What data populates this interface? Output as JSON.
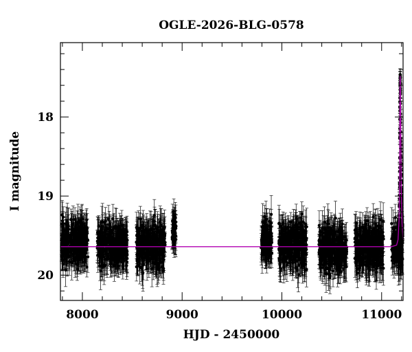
{
  "chart_data": {
    "type": "scatter",
    "title": "OGLE-2026-BLG-0578",
    "xlabel": "HJD - 2450000",
    "ylabel": "I magnitude",
    "xlim": [
      7780,
      11215
    ],
    "ylim": [
      20.32,
      17.06
    ],
    "y_inverted": true,
    "grid": false,
    "x_ticks": [
      8000,
      9000,
      10000,
      11000
    ],
    "y_ticks": [
      18,
      19,
      20
    ],
    "x_tick_labels": [
      "8000",
      "9000",
      "10000",
      "11000"
    ],
    "y_tick_labels": [
      "18",
      "19",
      "20"
    ],
    "x_minor_step": 200,
    "y_minor_step": 0.2,
    "colors": {
      "points": "#000000",
      "model": "#b000b0"
    },
    "baseline_mag": 19.64,
    "seasons": [
      {
        "start": 7790,
        "end": 8055,
        "mean": 19.6,
        "spread": 0.3
      },
      {
        "start": 8150,
        "end": 8450,
        "mean": 19.62,
        "spread": 0.28
      },
      {
        "start": 8540,
        "end": 8830,
        "mean": 19.62,
        "spread": 0.3
      },
      {
        "start": 8900,
        "end": 8940,
        "mean": 19.45,
        "spread": 0.18
      },
      {
        "start": 9790,
        "end": 9900,
        "mean": 19.55,
        "spread": 0.25
      },
      {
        "start": 9970,
        "end": 10250,
        "mean": 19.62,
        "spread": 0.3
      },
      {
        "start": 10370,
        "end": 10650,
        "mean": 19.66,
        "spread": 0.32
      },
      {
        "start": 10730,
        "end": 11020,
        "mean": 19.65,
        "spread": 0.32
      },
      {
        "start": 11100,
        "end": 11212,
        "mean": 19.6,
        "spread": 0.28
      }
    ],
    "event": {
      "t0": 11185,
      "peak_mag": 17.48,
      "rise_start": 11150,
      "decline_end": 11212
    },
    "model_curve": {
      "x": [
        7780,
        11100,
        11150,
        11165,
        11175,
        11180,
        11184,
        11186,
        11188,
        11192,
        11198,
        11205,
        11215
      ],
      "y": [
        19.64,
        19.64,
        19.62,
        19.55,
        19.3,
        18.8,
        17.6,
        17.48,
        17.6,
        18.3,
        18.95,
        19.35,
        19.55
      ]
    }
  }
}
